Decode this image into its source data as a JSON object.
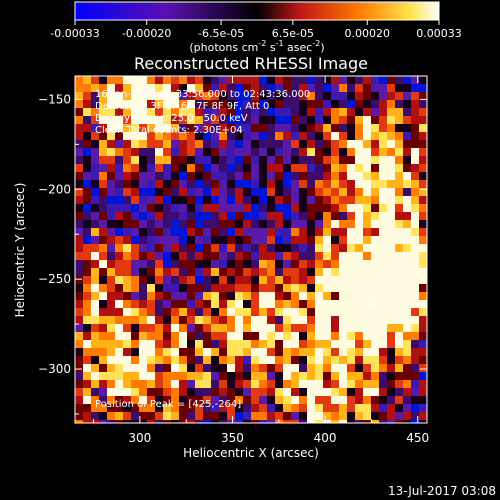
{
  "colorbar": {
    "ticks": [
      "-0.00033",
      "-0.00020",
      "-6.5e-05",
      "6.5e-05",
      "0.00020",
      "0.00033"
    ],
    "tick_values": [
      -0.00033,
      -0.0002,
      -6.5e-05,
      6.5e-05,
      0.0002,
      0.00033
    ],
    "range": [
      -0.00033,
      0.00033
    ],
    "units_main": "(photons cm",
    "units_exp1": "-2",
    "units_mid": " s",
    "units_exp2": "-1",
    "units_mid2": " asec",
    "units_exp3": "-2",
    "units_end": ")",
    "colors": [
      "#0000ff",
      "#6a0dad",
      "#000000",
      "#d21a1a",
      "#ff8c00",
      "#ffff66",
      "#ffffff"
    ]
  },
  "annotations": {
    "time": "16-Jan-2015 02:33:56.000 to 02:43:36.000",
    "detectors": "Detectors: 3F 5F 6F 7F 8F 9F, Att 0",
    "energy": "Energy Range: 25.0 - 50.0 keV",
    "clean": "Clean     Total counts: 2.30E+04",
    "peak": "Position of Peak = [425,-264]"
  },
  "footer": {
    "date": "13-Jul-2017 03:08"
  },
  "chart_data": {
    "type": "heatmap",
    "title": "Reconstructed RHESSI Image",
    "xlabel": "Heliocentric X (arcsec)",
    "ylabel": "Heliocentric Y (arcsec)",
    "xlim": [
      265,
      455
    ],
    "ylim": [
      -330,
      -137
    ],
    "xticks": [
      300,
      350,
      400,
      450
    ],
    "yticks": [
      -150,
      -200,
      -250,
      -300
    ],
    "peak": {
      "x": 425,
      "y": -264
    },
    "sources": [
      {
        "x": 425,
        "y": -264,
        "level": 1.0
      },
      {
        "x": 300,
        "y": -150,
        "level": 0.95
      },
      {
        "x": 425,
        "y": -185,
        "level": 0.75
      },
      {
        "x": 440,
        "y": -240,
        "level": 0.8
      },
      {
        "x": 365,
        "y": -275,
        "level": 0.7
      },
      {
        "x": 300,
        "y": -300,
        "level": 0.7
      },
      {
        "x": 275,
        "y": -255,
        "level": 0.45
      },
      {
        "x": 400,
        "y": -320,
        "level": 0.6
      }
    ]
  }
}
